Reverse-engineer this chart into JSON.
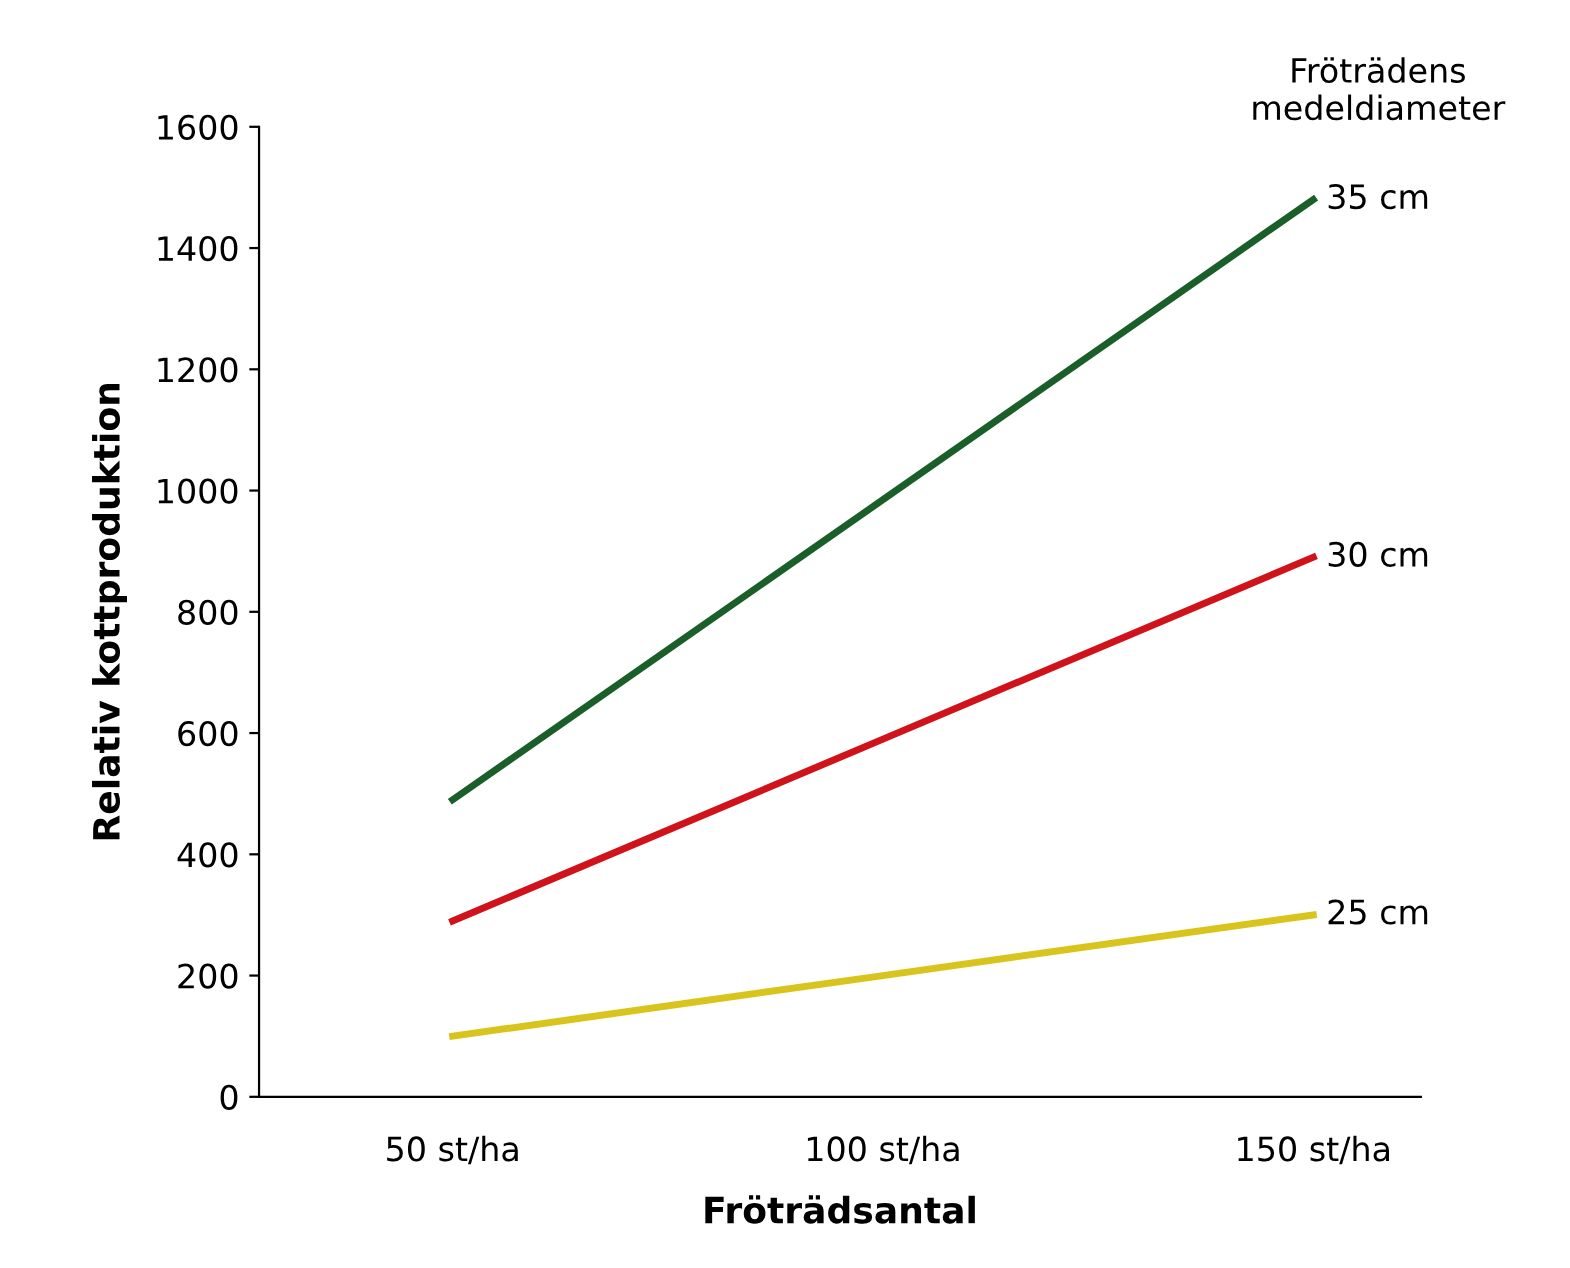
{
  "chart_data": {
    "type": "line",
    "xlabel": "Fröträdsantal",
    "ylabel": "Relativ kottproduktion",
    "legend_title": "Fröträdens\nmedeldiameter",
    "categories": [
      "50 st/ha",
      "100 st/ha",
      "150 st/ha"
    ],
    "series": [
      {
        "name": "35 cm",
        "color": "#1a5e2a",
        "values": [
          490,
          985,
          1480
        ]
      },
      {
        "name": "30 cm",
        "color": "#d0121b",
        "values": [
          290,
          590,
          890
        ]
      },
      {
        "name": "25 cm",
        "color": "#d8c41c",
        "values": [
          100,
          200,
          300
        ]
      }
    ],
    "ylim": [
      0,
      1600
    ],
    "yticks": [
      0,
      200,
      400,
      600,
      800,
      1000,
      1200,
      1400,
      1600
    ],
    "grid": false,
    "legend": false,
    "marker": "none",
    "line_style": "solid"
  }
}
